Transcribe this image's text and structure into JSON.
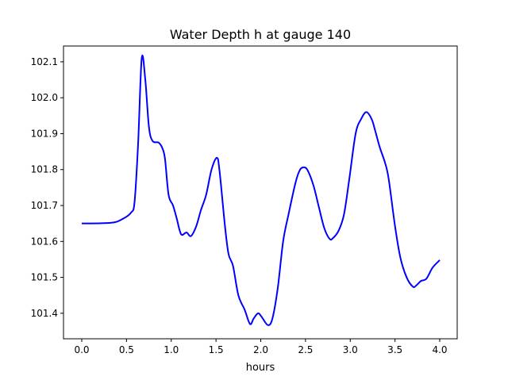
{
  "chart_data": {
    "type": "line",
    "title": "Water Depth h at gauge 140",
    "xlabel": "hours",
    "ylabel": "",
    "xlim": [
      -0.204,
      4.195
    ],
    "ylim": [
      101.329,
      102.144
    ],
    "grid": false,
    "xticks": [
      0.0,
      0.5,
      1.0,
      1.5,
      2.0,
      2.5,
      3.0,
      3.5,
      4.0
    ],
    "xtick_labels": [
      "0.0",
      "0.5",
      "1.0",
      "1.5",
      "2.0",
      "2.5",
      "3.0",
      "3.5",
      "4.0"
    ],
    "yticks": [
      101.4,
      101.5,
      101.6,
      101.7,
      101.8,
      101.9,
      102.0,
      102.1
    ],
    "ytick_labels": [
      "101.4",
      "101.5",
      "101.6",
      "101.7",
      "101.8",
      "101.9",
      "102.0",
      "102.1"
    ],
    "series": [
      {
        "name": "h",
        "color": "#0000ff",
        "x": [
          0,
          0.33,
          0.46,
          0.55,
          0.59,
          0.63,
          0.67,
          0.71,
          0.75,
          0.79,
          0.86,
          0.9,
          0.93,
          0.97,
          1.02,
          1.06,
          1.11,
          1.17,
          1.22,
          1.28,
          1.33,
          1.39,
          1.45,
          1.51,
          1.54,
          1.6,
          1.64,
          1.69,
          1.75,
          1.82,
          1.88,
          1.92,
          1.97,
          2.01,
          2.08,
          2.13,
          2.19,
          2.25,
          2.31,
          2.39,
          2.44,
          2.49,
          2.53,
          2.59,
          2.65,
          2.71,
          2.77,
          2.81,
          2.87,
          2.93,
          2.99,
          3.06,
          3.12,
          3.18,
          3.24,
          3.28,
          3.33,
          3.39,
          3.43,
          3.5,
          3.56,
          3.63,
          3.7,
          3.74,
          3.79,
          3.85,
          3.92,
          4.0
        ],
        "y": [
          101.65,
          101.652,
          101.663,
          101.68,
          101.71,
          101.874,
          102.11,
          102.05,
          101.92,
          101.88,
          101.875,
          101.86,
          101.83,
          101.73,
          101.7,
          101.665,
          101.62,
          101.625,
          101.615,
          101.643,
          101.686,
          101.73,
          101.8,
          101.833,
          101.795,
          101.643,
          101.565,
          101.532,
          101.45,
          101.41,
          101.37,
          101.385,
          101.4,
          101.39,
          101.367,
          101.385,
          101.47,
          101.6,
          101.675,
          101.765,
          101.8,
          101.806,
          101.795,
          101.755,
          101.695,
          101.637,
          101.607,
          101.61,
          101.63,
          101.675,
          101.775,
          101.9,
          101.94,
          101.96,
          101.94,
          101.907,
          101.862,
          101.818,
          101.773,
          101.643,
          101.555,
          101.5,
          101.474,
          101.478,
          101.49,
          101.496,
          101.527,
          101.548
        ]
      }
    ]
  }
}
